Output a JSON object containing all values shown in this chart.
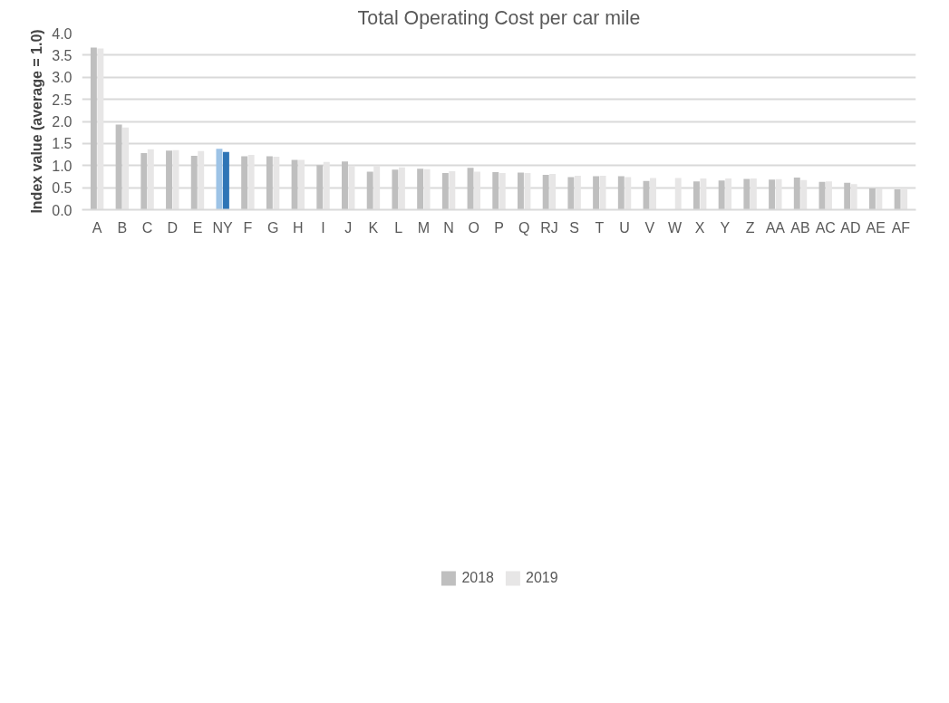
{
  "chart_data": {
    "type": "bar",
    "title": "Total Operating Cost per car mile",
    "ylabel": "Index value (average = 1.0)",
    "categories": [
      "A",
      "B",
      "C",
      "D",
      "E",
      "NY",
      "F",
      "G",
      "H",
      "I",
      "J",
      "K",
      "L",
      "M",
      "N",
      "O",
      "P",
      "Q",
      "RJ",
      "S",
      "T",
      "U",
      "V",
      "W",
      "X",
      "Y",
      "Z",
      "AA",
      "AB",
      "AC",
      "AD",
      "AE",
      "AF"
    ],
    "series": [
      {
        "name": "2018",
        "color": "#bfbfbf",
        "colors": [
          "#bfbfbf",
          "#bfbfbf",
          "#bfbfbf",
          "#bfbfbf",
          "#bfbfbf",
          "#9dc3e6",
          "#bfbfbf",
          "#bfbfbf",
          "#bfbfbf",
          "#bfbfbf",
          "#bfbfbf",
          "#bfbfbf",
          "#bfbfbf",
          "#bfbfbf",
          "#bfbfbf",
          "#bfbfbf",
          "#bfbfbf",
          "#bfbfbf",
          "#bfbfbf",
          "#bfbfbf",
          "#bfbfbf",
          "#bfbfbf",
          "#bfbfbf",
          "#bfbfbf",
          "#bfbfbf",
          "#bfbfbf",
          "#bfbfbf",
          "#bfbfbf",
          "#bfbfbf",
          "#bfbfbf",
          "#bfbfbf",
          "#bfbfbf",
          "#bfbfbf"
        ],
        "values": [
          3.67,
          1.93,
          1.28,
          1.34,
          1.22,
          1.38,
          1.21,
          1.21,
          1.13,
          1.01,
          1.09,
          0.86,
          0.91,
          0.93,
          0.83,
          0.95,
          0.85,
          0.84,
          0.79,
          0.74,
          0.76,
          0.76,
          0.65,
          null,
          0.64,
          0.66,
          0.7,
          0.68,
          0.73,
          0.63,
          0.61,
          0.48,
          0.46
        ]
      },
      {
        "name": "2019",
        "color": "#e7e6e6",
        "colors": [
          "#e7e6e6",
          "#e7e6e6",
          "#e7e6e6",
          "#e7e6e6",
          "#e7e6e6",
          "#2e75b6",
          "#e7e6e6",
          "#e7e6e6",
          "#e7e6e6",
          "#e7e6e6",
          "#e7e6e6",
          "#e7e6e6",
          "#e7e6e6",
          "#e7e6e6",
          "#e7e6e6",
          "#e7e6e6",
          "#e7e6e6",
          "#e7e6e6",
          "#e7e6e6",
          "#e7e6e6",
          "#e7e6e6",
          "#e7e6e6",
          "#e7e6e6",
          "#e7e6e6",
          "#e7e6e6",
          "#e7e6e6",
          "#e7e6e6",
          "#e7e6e6",
          "#e7e6e6",
          "#e7e6e6",
          "#e7e6e6",
          "#e7e6e6",
          "#e7e6e6"
        ],
        "values": [
          3.65,
          1.86,
          1.37,
          1.35,
          1.33,
          1.31,
          1.24,
          1.2,
          1.13,
          1.08,
          1.0,
          1.0,
          0.96,
          0.92,
          0.87,
          0.86,
          0.83,
          0.83,
          0.81,
          0.77,
          0.77,
          0.74,
          0.72,
          0.72,
          0.71,
          0.71,
          0.71,
          0.69,
          0.67,
          0.64,
          0.58,
          0.48,
          0.46
        ]
      }
    ],
    "ylim": [
      0,
      4.0
    ],
    "yticks": [
      {
        "value": 0,
        "label": "0.0"
      },
      {
        "value": 0.5,
        "label": "0.5"
      },
      {
        "value": 1,
        "label": "1.0"
      },
      {
        "value": 1.5,
        "label": "1.5"
      },
      {
        "value": 2,
        "label": "2.0"
      },
      {
        "value": 2.5,
        "label": "2.5"
      },
      {
        "value": 3,
        "label": "3.0"
      },
      {
        "value": 3.5,
        "label": "3.5"
      },
      {
        "value": 4,
        "label": "4.0"
      }
    ],
    "grid": "y",
    "legend": "bottom"
  }
}
